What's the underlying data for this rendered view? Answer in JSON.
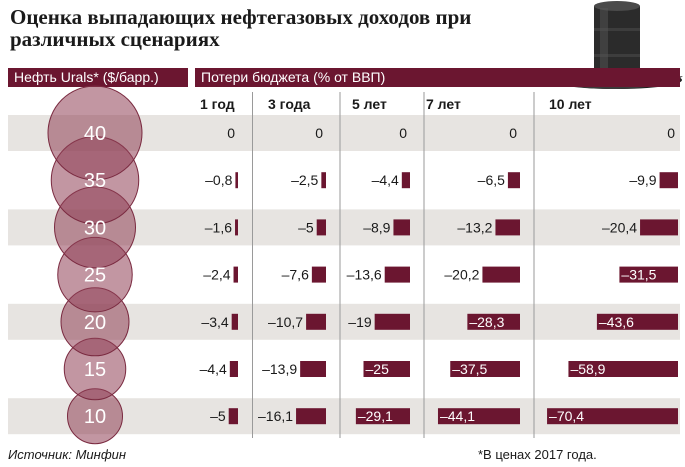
{
  "title": "Оценка выпадающих нефтегазовых доходов при различных сценариях",
  "header_left": "Нефть Urals* ($/барр.)",
  "header_right": "Потери бюджета (% от ВВП)",
  "source": "Источник: Минфин",
  "footnote": "*В ценах 2017 года.",
  "colors": {
    "accent": "#6b1630",
    "band": "#e7e4e1",
    "circle": "#8f3f55"
  },
  "chart_data": {
    "type": "bar",
    "title": "Оценка выпадающих нефтегазовых доходов при различных сценариях",
    "categories": [
      "40",
      "35",
      "30",
      "25",
      "20",
      "15",
      "10"
    ],
    "category_label": "Нефть Urals* ($/барр.)",
    "value_label": "Потери бюджета (% от ВВП)",
    "series": [
      {
        "name": "1 год",
        "values": [
          0,
          -0.8,
          -1.6,
          -2.4,
          -3.4,
          -4.4,
          -5
        ],
        "labels": [
          "0",
          "–0,8",
          "–1,6",
          "–2,4",
          "–3,4",
          "–4,4",
          "–5"
        ]
      },
      {
        "name": "3 года",
        "values": [
          0,
          -2.5,
          -5,
          -7.6,
          -10.7,
          -13.9,
          -16.1
        ],
        "labels": [
          "0",
          "–2,5",
          "–5",
          "–7,6",
          "–10,7",
          "–13,9",
          "–16,1"
        ]
      },
      {
        "name": "5 лет",
        "values": [
          0,
          -4.4,
          -8.9,
          -13.6,
          -19,
          -25,
          -29.1
        ],
        "labels": [
          "0",
          "–4,4",
          "–8,9",
          "–13,6",
          "–19",
          "–25",
          "–29,1"
        ]
      },
      {
        "name": "7 лет",
        "values": [
          0,
          -6.5,
          -13.2,
          -20.2,
          -28.3,
          -37.5,
          -44.1
        ],
        "labels": [
          "0",
          "–6,5",
          "–13,2",
          "–20,2",
          "–28,3",
          "–37,5",
          "–44,1"
        ]
      },
      {
        "name": "10 лет",
        "values": [
          0,
          -9.9,
          -20.4,
          -31.5,
          -43.6,
          -58.9,
          -70.4
        ],
        "labels": [
          "0",
          "–9,9",
          "–20,4",
          "–31,5",
          "–43,6",
          "–58,9",
          "–70,4"
        ]
      }
    ]
  }
}
